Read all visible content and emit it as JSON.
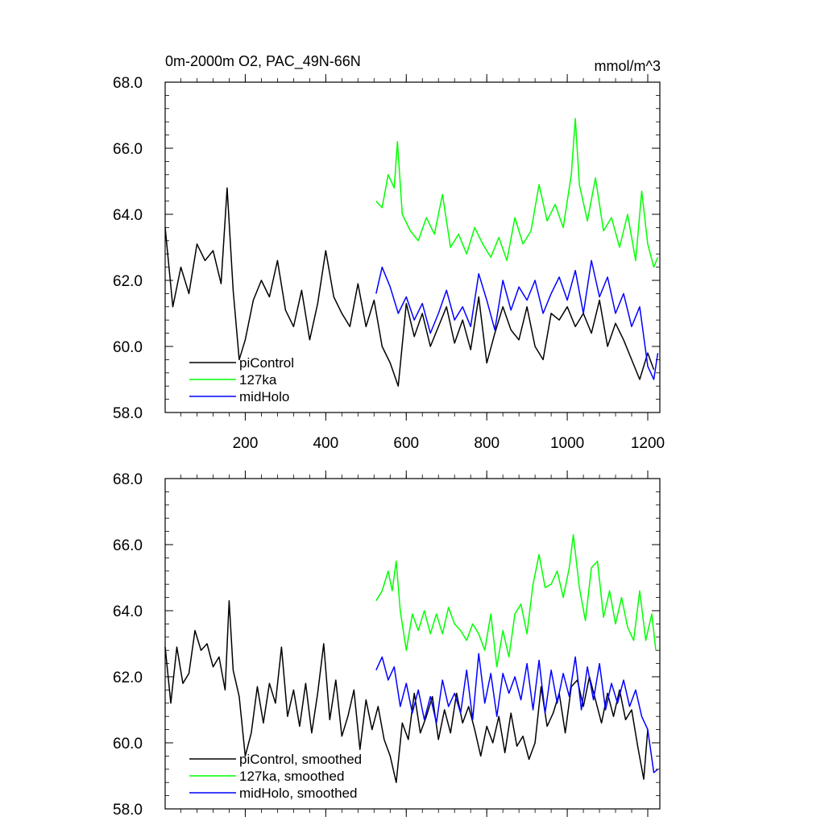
{
  "chart_data": [
    {
      "type": "line",
      "title": "0m-2000m O2, PAC_49N-66N",
      "units": "mmol/m^3",
      "xlabel": "",
      "ylabel": "",
      "xlim": [
        1,
        1230
      ],
      "ylim": [
        58.0,
        68.0
      ],
      "x_ticks": [
        200,
        400,
        600,
        800,
        1000,
        1200
      ],
      "x_tick_labels": [
        "200",
        "400",
        "600",
        "800",
        "1000",
        "1200"
      ],
      "y_ticks": [
        58.0,
        60.0,
        62.0,
        64.0,
        66.0,
        68.0
      ],
      "y_tick_labels": [
        "58.0",
        "60.0",
        "62.0",
        "64.0",
        "66.0",
        "68.0"
      ],
      "grid": false,
      "legend_position": "bottom-left",
      "series": [
        {
          "name": "piControl",
          "color": "#000000",
          "x": [
            1,
            20,
            40,
            60,
            80,
            100,
            120,
            140,
            155,
            170,
            185,
            200,
            220,
            240,
            260,
            280,
            300,
            320,
            340,
            360,
            380,
            400,
            420,
            440,
            460,
            480,
            500,
            520,
            540,
            560,
            580,
            600,
            620,
            640,
            660,
            680,
            700,
            720,
            740,
            760,
            780,
            800,
            820,
            840,
            860,
            880,
            900,
            920,
            940,
            960,
            980,
            1000,
            1020,
            1040,
            1060,
            1080,
            1100,
            1120,
            1140,
            1160,
            1180,
            1200,
            1215
          ],
          "values": [
            63.6,
            61.2,
            62.4,
            61.6,
            63.1,
            62.6,
            62.9,
            61.9,
            64.8,
            61.7,
            59.6,
            60.2,
            61.4,
            62.0,
            61.5,
            62.6,
            61.1,
            60.6,
            61.7,
            60.2,
            61.3,
            62.9,
            61.5,
            61.0,
            60.6,
            61.9,
            60.6,
            61.4,
            60.0,
            59.5,
            58.8,
            61.3,
            60.3,
            61.0,
            60.0,
            60.6,
            61.2,
            60.1,
            60.8,
            59.9,
            61.5,
            59.5,
            60.4,
            61.2,
            60.5,
            60.2,
            61.2,
            60.0,
            59.6,
            61.0,
            60.8,
            61.2,
            60.6,
            61.0,
            60.4,
            61.4,
            60.0,
            60.7,
            60.2,
            59.6,
            59.0,
            59.8,
            59.3
          ]
        },
        {
          "name": "127ka",
          "color": "#00ff00",
          "x": [
            525,
            540,
            555,
            570,
            578,
            590,
            610,
            630,
            650,
            670,
            690,
            710,
            730,
            750,
            770,
            790,
            810,
            830,
            850,
            870,
            890,
            910,
            930,
            950,
            970,
            990,
            1010,
            1020,
            1030,
            1050,
            1070,
            1090,
            1110,
            1130,
            1150,
            1170,
            1185,
            1200,
            1215,
            1225
          ],
          "values": [
            64.4,
            64.2,
            65.2,
            64.8,
            66.2,
            64.0,
            63.5,
            63.2,
            63.9,
            63.4,
            64.6,
            63.0,
            63.4,
            62.8,
            63.6,
            63.1,
            62.7,
            63.3,
            62.6,
            63.9,
            63.1,
            63.5,
            64.9,
            63.8,
            64.3,
            63.6,
            65.2,
            66.9,
            64.9,
            63.8,
            65.1,
            63.5,
            63.9,
            63.0,
            64.0,
            62.6,
            64.7,
            63.1,
            62.4,
            62.7
          ]
        },
        {
          "name": "midHolo",
          "color": "#0000ff",
          "x": [
            525,
            540,
            560,
            580,
            600,
            620,
            640,
            660,
            680,
            700,
            720,
            740,
            760,
            780,
            800,
            820,
            840,
            860,
            880,
            900,
            920,
            940,
            960,
            980,
            1000,
            1020,
            1040,
            1060,
            1080,
            1100,
            1120,
            1140,
            1160,
            1180,
            1200,
            1215,
            1225
          ],
          "values": [
            61.6,
            62.4,
            61.8,
            61.0,
            61.5,
            60.8,
            61.3,
            60.4,
            61.0,
            61.7,
            60.8,
            61.2,
            60.6,
            62.2,
            61.4,
            60.5,
            62.0,
            61.1,
            61.8,
            61.4,
            62.0,
            61.0,
            61.6,
            62.1,
            61.4,
            62.3,
            61.0,
            62.6,
            61.5,
            62.1,
            61.0,
            61.6,
            60.6,
            61.2,
            59.4,
            59.0,
            59.8
          ]
        }
      ]
    },
    {
      "type": "line",
      "title": "",
      "xlabel": "",
      "ylabel": "",
      "xlim": [
        1,
        1230
      ],
      "ylim": [
        58.0,
        68.0
      ],
      "x_ticks": [
        200,
        400,
        600,
        800,
        1000,
        1200
      ],
      "y_ticks": [
        58.0,
        60.0,
        62.0,
        64.0,
        66.0,
        68.0
      ],
      "y_tick_labels": [
        "58.0",
        "60.0",
        "62.0",
        "64.0",
        "66.0",
        "68.0"
      ],
      "grid": false,
      "legend_position": "bottom-left",
      "series": [
        {
          "name": "piControl, smoothed",
          "color": "#000000",
          "x": [
            1,
            15,
            30,
            45,
            60,
            75,
            90,
            105,
            120,
            135,
            150,
            160,
            170,
            185,
            200,
            215,
            230,
            245,
            260,
            275,
            290,
            305,
            320,
            335,
            350,
            365,
            380,
            395,
            410,
            425,
            440,
            455,
            470,
            485,
            500,
            515,
            530,
            545,
            560,
            575,
            590,
            605,
            620,
            635,
            650,
            665,
            680,
            695,
            710,
            725,
            740,
            755,
            770,
            785,
            800,
            815,
            830,
            845,
            860,
            875,
            890,
            905,
            920,
            935,
            950,
            965,
            980,
            995,
            1010,
            1025,
            1040,
            1055,
            1070,
            1085,
            1100,
            1115,
            1130,
            1145,
            1160,
            1175,
            1190,
            1200
          ],
          "values": [
            62.9,
            61.2,
            62.9,
            61.8,
            62.1,
            63.4,
            62.8,
            63.0,
            62.3,
            62.6,
            61.6,
            64.3,
            62.2,
            61.4,
            59.6,
            60.3,
            61.7,
            60.6,
            61.8,
            61.2,
            62.9,
            60.8,
            61.6,
            60.5,
            61.8,
            60.3,
            61.5,
            63.0,
            60.7,
            61.9,
            60.2,
            60.8,
            61.6,
            59.8,
            61.3,
            60.4,
            61.1,
            60.1,
            59.6,
            58.8,
            60.6,
            60.1,
            61.5,
            60.3,
            60.8,
            61.4,
            60.1,
            61.0,
            60.3,
            61.5,
            60.6,
            61.1,
            60.4,
            59.6,
            60.5,
            60.0,
            60.8,
            59.7,
            60.9,
            59.9,
            60.2,
            59.5,
            60.0,
            61.7,
            60.5,
            60.9,
            61.5,
            60.3,
            61.7,
            61.9,
            61.1,
            62.0,
            61.3,
            60.6,
            61.5,
            60.8,
            61.6,
            60.7,
            61.0,
            59.9,
            58.9,
            60.4
          ]
        },
        {
          "name": "127ka, smoothed",
          "color": "#00ff00",
          "x": [
            525,
            540,
            555,
            565,
            575,
            585,
            600,
            615,
            630,
            645,
            660,
            675,
            690,
            705,
            720,
            735,
            750,
            765,
            780,
            795,
            810,
            825,
            840,
            855,
            870,
            885,
            900,
            915,
            930,
            945,
            960,
            975,
            990,
            1005,
            1015,
            1030,
            1045,
            1060,
            1075,
            1090,
            1105,
            1120,
            1135,
            1150,
            1165,
            1180,
            1195,
            1210,
            1220
          ],
          "values": [
            64.3,
            64.6,
            65.2,
            64.6,
            65.5,
            64.0,
            62.8,
            63.9,
            63.4,
            64.0,
            63.3,
            63.9,
            63.3,
            64.1,
            63.6,
            63.4,
            63.1,
            63.6,
            63.3,
            62.8,
            63.9,
            62.3,
            63.4,
            62.6,
            63.9,
            64.2,
            63.3,
            64.8,
            65.7,
            64.7,
            64.8,
            65.2,
            64.4,
            65.3,
            66.3,
            64.7,
            63.7,
            65.3,
            65.5,
            63.8,
            64.6,
            63.6,
            64.4,
            63.5,
            63.1,
            64.6,
            63.1,
            63.9,
            62.8
          ]
        },
        {
          "name": "midHolo, smoothed",
          "color": "#0000ff",
          "x": [
            525,
            540,
            555,
            570,
            585,
            600,
            615,
            630,
            645,
            660,
            675,
            690,
            705,
            720,
            735,
            750,
            765,
            780,
            795,
            810,
            825,
            840,
            855,
            870,
            885,
            900,
            915,
            930,
            945,
            960,
            975,
            990,
            1005,
            1020,
            1035,
            1050,
            1065,
            1080,
            1095,
            1110,
            1125,
            1140,
            1155,
            1170,
            1185,
            1200,
            1215,
            1225
          ],
          "values": [
            62.2,
            62.6,
            61.9,
            62.3,
            61.1,
            61.8,
            60.9,
            61.6,
            60.7,
            61.4,
            60.6,
            61.9,
            61.1,
            61.5,
            60.9,
            62.2,
            60.7,
            62.7,
            61.2,
            62.1,
            60.8,
            62.1,
            61.5,
            62.0,
            61.3,
            62.4,
            61.0,
            62.5,
            60.9,
            62.2,
            61.2,
            62.1,
            61.4,
            62.6,
            61.0,
            62.3,
            61.3,
            62.4,
            61.0,
            61.8,
            61.2,
            61.9,
            61.1,
            61.6,
            60.8,
            60.4,
            59.1,
            59.2
          ]
        }
      ]
    }
  ]
}
